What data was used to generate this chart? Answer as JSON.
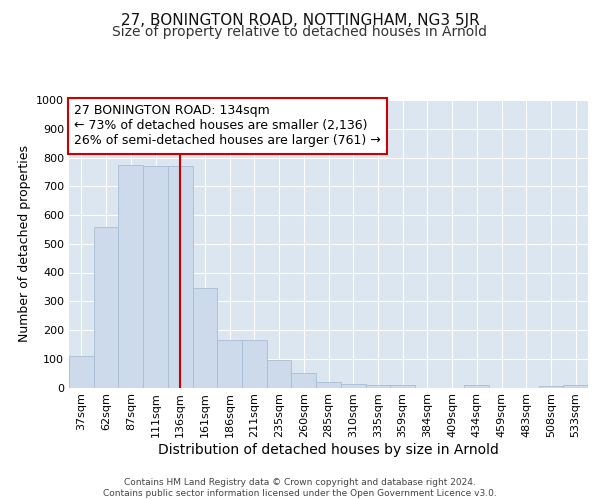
{
  "title_line1": "27, BONINGTON ROAD, NOTTINGHAM, NG3 5JR",
  "title_line2": "Size of property relative to detached houses in Arnold",
  "xlabel": "Distribution of detached houses by size in Arnold",
  "ylabel": "Number of detached properties",
  "categories": [
    "37sqm",
    "62sqm",
    "87sqm",
    "111sqm",
    "136sqm",
    "161sqm",
    "186sqm",
    "211sqm",
    "235sqm",
    "260sqm",
    "285sqm",
    "310sqm",
    "335sqm",
    "359sqm",
    "384sqm",
    "409sqm",
    "434sqm",
    "459sqm",
    "483sqm",
    "508sqm",
    "533sqm"
  ],
  "values": [
    110,
    560,
    775,
    770,
    770,
    345,
    165,
    165,
    95,
    50,
    20,
    13,
    10,
    10,
    0,
    0,
    10,
    0,
    0,
    5,
    10
  ],
  "bar_color": "#cddaeb",
  "bar_edgecolor": "#a8bdd4",
  "highlight_index": 4,
  "highlight_color": "#cc0000",
  "annotation_text": "27 BONINGTON ROAD: 134sqm\n← 73% of detached houses are smaller (2,136)\n26% of semi-detached houses are larger (761) →",
  "annotation_box_color": "#ffffff",
  "annotation_box_edgecolor": "#cc0000",
  "ylim": [
    0,
    1000
  ],
  "yticks": [
    0,
    100,
    200,
    300,
    400,
    500,
    600,
    700,
    800,
    900,
    1000
  ],
  "background_color": "#dce6f0",
  "footer_text": "Contains HM Land Registry data © Crown copyright and database right 2024.\nContains public sector information licensed under the Open Government Licence v3.0.",
  "title_fontsize": 11,
  "subtitle_fontsize": 10,
  "xlabel_fontsize": 10,
  "ylabel_fontsize": 9,
  "tick_fontsize": 8,
  "annotation_fontsize": 9,
  "footer_fontsize": 6.5
}
